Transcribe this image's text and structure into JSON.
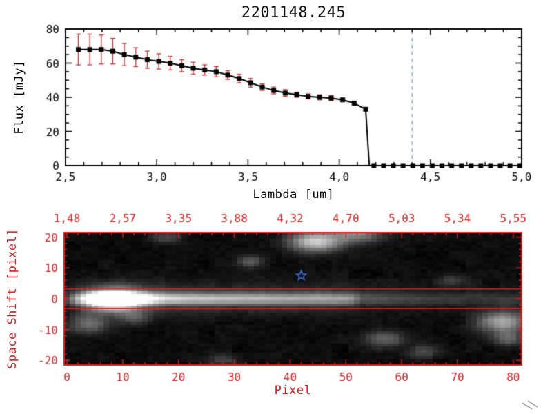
{
  "title": "2201148.245",
  "colors": {
    "axis_black": "#000000",
    "axis_red": "#cf2020",
    "error_red": "#d03030",
    "dashed_red": "#cf2020",
    "dashed_blue": "#6ca6d9",
    "star_blue": "#3b6fe0",
    "background": "#ffffff",
    "panel_background": "#000000"
  },
  "chart_data": [
    {
      "type": "line",
      "title": "2201148.245",
      "xlabel": "Lambda [um]",
      "ylabel": "Flux [mJy]",
      "xlim": [
        2.5,
        5.0
      ],
      "ylim": [
        0,
        80
      ],
      "xtick_values": [
        2.5,
        3.0,
        3.5,
        4.0,
        4.5,
        5.0
      ],
      "xtick_labels": [
        "2,5",
        "3,0",
        "3,5",
        "4,0",
        "4,5",
        "5,0"
      ],
      "ytick_values": [
        0,
        20,
        40,
        60,
        80
      ],
      "ytick_labels": [
        "0",
        "20",
        "40",
        "60",
        "80"
      ],
      "x": [
        2.57,
        2.633,
        2.696,
        2.759,
        2.822,
        2.885,
        2.948,
        3.011,
        3.074,
        3.137,
        3.2,
        3.263,
        3.326,
        3.389,
        3.452,
        3.515,
        3.578,
        3.641,
        3.704,
        3.767,
        3.83,
        3.893,
        3.956,
        4.019,
        4.082,
        4.145
      ],
      "y": [
        68,
        68,
        68,
        67,
        65,
        63.5,
        62,
        61,
        60,
        58.5,
        57,
        56,
        55,
        53,
        51,
        48.5,
        46,
        44,
        42.5,
        41.5,
        40.5,
        40,
        39.5,
        38.5,
        36.5,
        33
      ],
      "yerr": [
        9,
        9,
        8.5,
        7.5,
        6.5,
        5.5,
        5,
        4.5,
        4,
        3.5,
        3.5,
        3,
        3,
        2.5,
        2.5,
        2.5,
        2,
        2,
        2,
        1.5,
        1.5,
        1.5,
        1.5,
        1,
        1,
        1
      ],
      "drop_x": 4.165,
      "zero_tail_x_start": 4.19,
      "zero_tail_x_end": 4.99,
      "zero_tail_step": 0.0533,
      "vline_x": 4.4,
      "hline_y": 0
    },
    {
      "type": "heatmap",
      "xlabel": "Pixel",
      "ylabel": "Space Shift [pixel]",
      "xlim": [
        -0.5,
        81.5
      ],
      "ylim": [
        -21.5,
        21.5
      ],
      "xtick_values": [
        0,
        10,
        20,
        30,
        40,
        50,
        60,
        70,
        80
      ],
      "xtick_labels": [
        "0",
        "10",
        "20",
        "30",
        "40",
        "50",
        "60",
        "70",
        "80"
      ],
      "ytick_values": [
        -20,
        -10,
        0,
        10,
        20
      ],
      "ytick_labels": [
        "-20",
        "-10",
        "0",
        "10",
        "20"
      ],
      "top_axis_labels": [
        "1,48",
        "2,57",
        "3,35",
        "3,88",
        "4,32",
        "4,70",
        "5,03",
        "5,34",
        "5,55"
      ],
      "aperture_lines_y": [
        3.2,
        -3.2
      ],
      "star_marker": {
        "x": 42,
        "y": 7.5
      },
      "image": {
        "nx": 82,
        "ny": 43,
        "trace": {
          "y_center": 0,
          "core_sigma": 1.3,
          "halo_sigma": 3.4,
          "halo_frac": 0.3,
          "profile": [
            [
              0,
              0.15
            ],
            [
              3,
              0.55
            ],
            [
              6,
              0.9
            ],
            [
              9,
              1.0
            ],
            [
              13,
              0.8
            ],
            [
              18,
              0.62
            ],
            [
              25,
              0.55
            ],
            [
              35,
              0.5
            ],
            [
              45,
              0.47
            ],
            [
              51,
              0.42
            ],
            [
              53,
              0.22
            ],
            [
              60,
              0.16
            ],
            [
              70,
              0.13
            ],
            [
              81,
              0.11
            ]
          ]
        },
        "psf": {
          "x": 8.5,
          "y": -0.2,
          "sx": 3.2,
          "sy": 2.2,
          "a": 1.15
        },
        "blobs": [
          {
            "x": 44.5,
            "y": 18.5,
            "sx": 3.2,
            "sy": 2.2,
            "a": 0.75
          },
          {
            "x": 52,
            "y": 21,
            "sx": 3,
            "sy": 2,
            "a": 0.45
          },
          {
            "x": 4,
            "y": -8,
            "sx": 2.5,
            "sy": 2.2,
            "a": 0.35
          },
          {
            "x": 12,
            "y": -6,
            "sx": 2,
            "sy": 1.6,
            "a": 0.25
          },
          {
            "x": 33,
            "y": 12,
            "sx": 1.6,
            "sy": 1.3,
            "a": 0.3
          },
          {
            "x": 57,
            "y": -13,
            "sx": 2.6,
            "sy": 1.8,
            "a": 0.3
          },
          {
            "x": 64,
            "y": -17,
            "sx": 2,
            "sy": 1.5,
            "a": 0.22
          },
          {
            "x": 78,
            "y": -7.5,
            "sx": 3,
            "sy": 2.4,
            "a": 0.6
          },
          {
            "x": 79,
            "y": -13,
            "sx": 2,
            "sy": 1.6,
            "a": 0.3
          },
          {
            "x": 18,
            "y": 20,
            "sx": 2,
            "sy": 1.5,
            "a": 0.2
          },
          {
            "x": 69,
            "y": 6,
            "sx": 1.8,
            "sy": 1.4,
            "a": 0.18
          },
          {
            "x": 28,
            "y": -20,
            "sx": 2,
            "sy": 1.4,
            "a": 0.18
          }
        ],
        "noise_level": 0.07,
        "noise_seed": 11,
        "gamma": 0.9
      }
    }
  ]
}
